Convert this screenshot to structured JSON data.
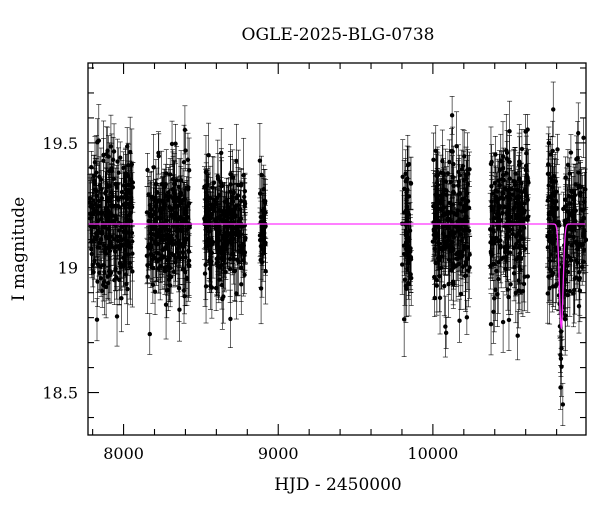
{
  "chart_data": {
    "type": "scatter",
    "title": "OGLE-2025-BLG-0738",
    "xlabel": "HJD - 2450000",
    "ylabel": "I magnitude",
    "xlim": [
      7770,
      10990
    ],
    "ylim": [
      19.82,
      18.33
    ],
    "y_inverted": true,
    "grid": false,
    "xticks": [
      8000,
      9000,
      10000
    ],
    "xtick_labels": [
      "8000",
      "9000",
      "10000"
    ],
    "yticks": [
      18.5,
      19,
      19.5
    ],
    "ytick_labels": [
      "18.5",
      "19",
      "19.5"
    ],
    "baseline_mag": 19.175,
    "point_color": "#000000",
    "model_color": "#ff33ff",
    "seasons": [
      {
        "x_start": 7780,
        "x_end": 8060,
        "mag_mean": 19.17,
        "mag_spread": 0.13
      },
      {
        "x_start": 8150,
        "x_end": 8430,
        "mag_mean": 19.17,
        "mag_spread": 0.13
      },
      {
        "x_start": 8520,
        "x_end": 8790,
        "mag_mean": 19.17,
        "mag_spread": 0.13
      },
      {
        "x_start": 8880,
        "x_end": 8920,
        "mag_mean": 19.14,
        "mag_spread": 0.12
      },
      {
        "x_start": 9800,
        "x_end": 9860,
        "mag_mean": 19.17,
        "mag_spread": 0.17
      },
      {
        "x_start": 10000,
        "x_end": 10240,
        "mag_mean": 19.17,
        "mag_spread": 0.14
      },
      {
        "x_start": 10370,
        "x_end": 10620,
        "mag_mean": 19.2,
        "mag_spread": 0.15
      },
      {
        "x_start": 10740,
        "x_end": 10990,
        "mag_mean": 19.17,
        "mag_spread": 0.15
      }
    ],
    "series": [
      {
        "type": "microlensing-model",
        "t0": 10830,
        "peak_mag": 18.76,
        "baseline_mag": 19.175,
        "width_days": 12,
        "color": "#ff33ff"
      }
    ]
  }
}
